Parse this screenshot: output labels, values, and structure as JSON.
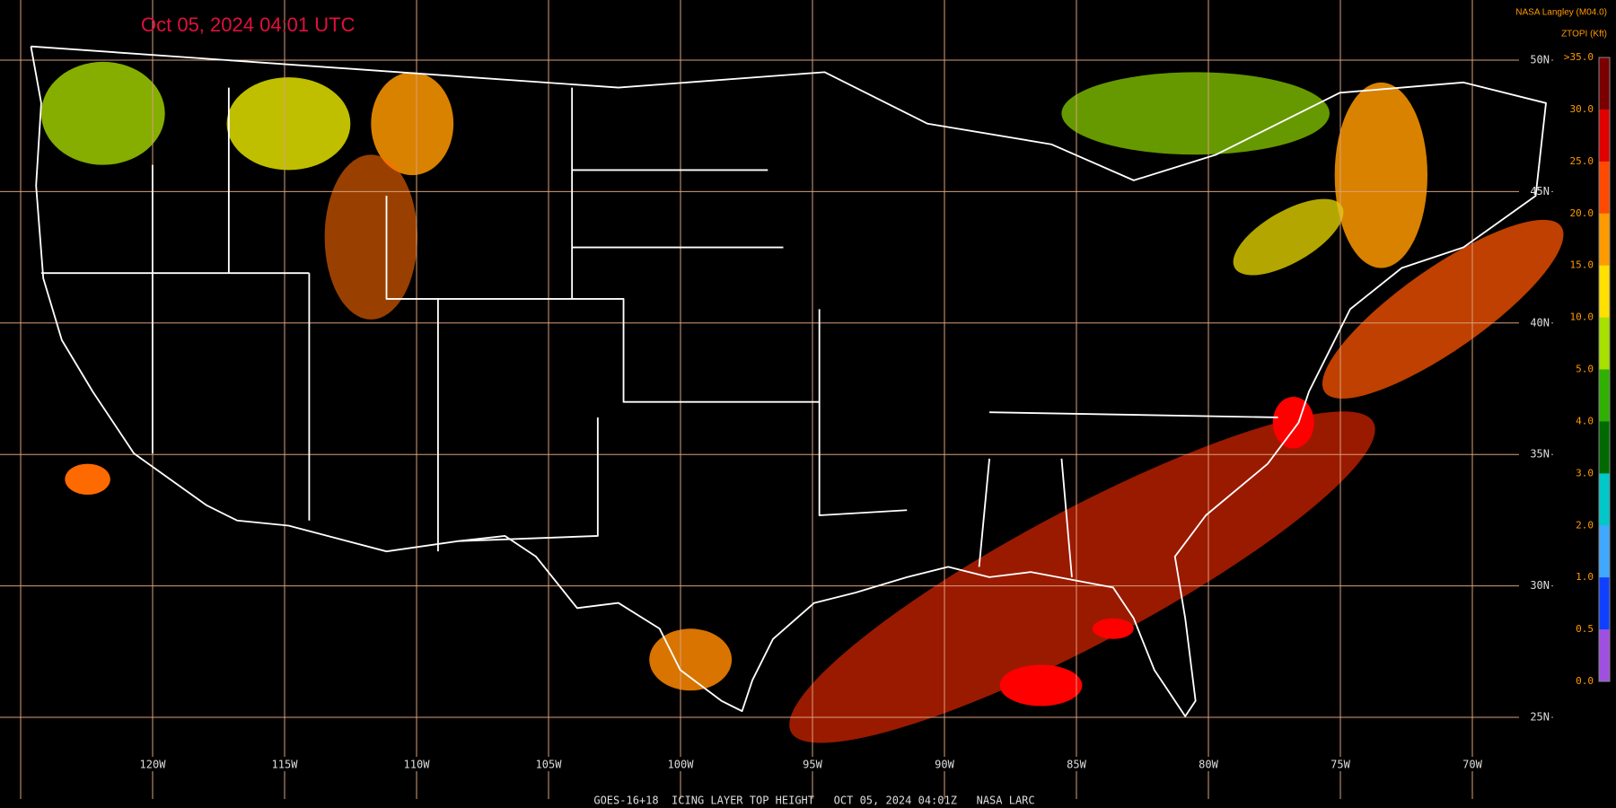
{
  "header": {
    "timestamp": "Oct 05, 2024 04:01 UTC",
    "source": "NASA Langley (M04.0)",
    "product": "ZTOPI (Kft)"
  },
  "legend": {
    "labels": [
      ">35.0",
      "30.0",
      "25.0",
      "20.0",
      "15.0",
      "10.0",
      "5.0",
      "4.0",
      "3.0",
      "2.0",
      "1.0",
      "0.5",
      "0.0"
    ],
    "colors": [
      "#7a0000",
      "#e00000",
      "#ff4a00",
      "#ff9a00",
      "#ffe000",
      "#a8e000",
      "#30b000",
      "#006a00",
      "#00c8c8",
      "#40a8ff",
      "#1040ff",
      "#a050e0"
    ]
  },
  "latitudes": [
    "50N",
    "45N",
    "40N",
    "35N",
    "30N",
    "25N"
  ],
  "longitudes": [
    "120W",
    "115W",
    "110W",
    "105W",
    "100W",
    "95W",
    "90W",
    "85W",
    "80W",
    "75W",
    "70W"
  ],
  "footer": "GOES-16+18  ICING LAYER TOP HEIGHT   OCT 05, 2024 04:01Z   NASA LARC"
}
